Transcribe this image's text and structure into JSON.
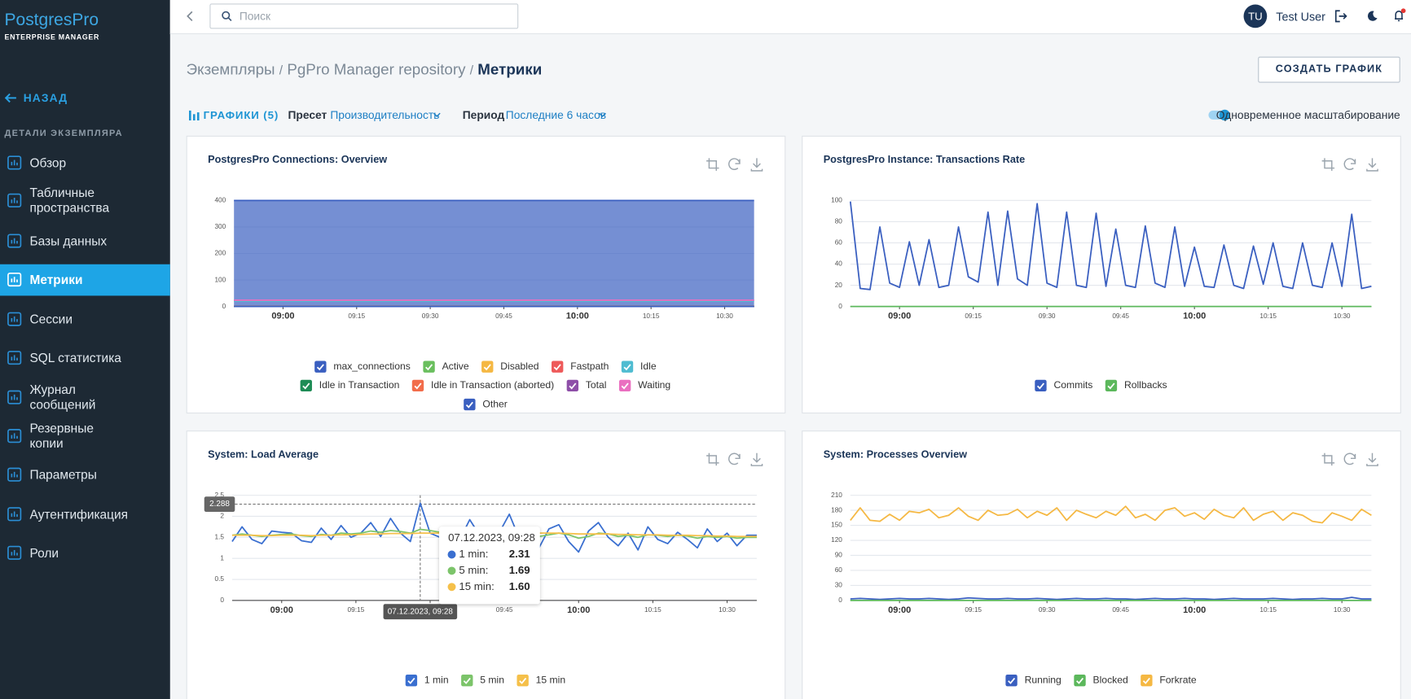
{
  "sidebar": {
    "logo": "PostgresPro",
    "logo_subtitle": "ENTERPRISE MANAGER",
    "back": "НАЗАД",
    "section": "ДЕТАЛИ ЭКЗЕМПЛЯРА",
    "items": [
      "Обзор",
      "Табличные пространства",
      "Базы данных",
      "Метрики",
      "Сессии",
      "SQL статистика",
      "Журнал сообщений",
      "Резервные копии",
      "Параметры",
      "Аутентификация",
      "Роли"
    ],
    "active": 3
  },
  "topbar": {
    "search_placeholder": "Поиск",
    "avatar": "TU",
    "user": "Test User"
  },
  "breadcrumbs": [
    "Экземпляры",
    "PgPro Manager repository",
    "Метрики"
  ],
  "breadcrumb_separator": "/",
  "create_button": "СОЗДАТЬ ГРАФИК",
  "toolbar": {
    "charts": "ГРАФИКИ (5)",
    "preset_label": "Пресет",
    "preset": "Производительность",
    "period_label": "Период",
    "period": "Последние 6 часов",
    "sync_zoom": "Одновременное масштабирование",
    "sync_zoom_on": true
  },
  "chart_data": [
    {
      "type": "line",
      "title": "PostgresPro Connections: Overview",
      "x": [
        530,
        636
      ],
      "xlim": [
        530,
        636
      ],
      "xticks": [
        {
          "value": 540,
          "label": "09:00"
        },
        {
          "value": 555,
          "label": "09:15"
        },
        {
          "value": 570,
          "label": "09:30"
        },
        {
          "value": 585,
          "label": "09:45"
        },
        {
          "value": 600,
          "label": "10:00"
        },
        {
          "value": 615,
          "label": "10:15"
        },
        {
          "value": 630,
          "label": "10:30"
        }
      ],
      "ylim": [
        0,
        400
      ],
      "yticks": [
        0,
        100,
        200,
        300,
        400
      ],
      "grid": true,
      "series": [
        {
          "name": "max_connections",
          "color": "#3a5fc0",
          "area": true,
          "values": [
            400,
            400
          ]
        },
        {
          "name": "Active",
          "color": "#6abf5e",
          "values": [
            1,
            1
          ]
        },
        {
          "name": "Disabled",
          "color": "#f5b843",
          "values": [
            0,
            0
          ]
        },
        {
          "name": "Fastpath",
          "color": "#ee5a5a",
          "values": [
            0,
            0
          ]
        },
        {
          "name": "Idle",
          "color": "#4fbcd1",
          "values": [
            20,
            20
          ]
        },
        {
          "name": "Idle in Transaction",
          "color": "#1e8c56",
          "values": [
            0,
            0
          ]
        },
        {
          "name": "Idle in Transaction (aborted)",
          "color": "#f26d4b",
          "values": [
            0,
            0
          ]
        },
        {
          "name": "Total",
          "color": "#8e4fa8",
          "values": [
            24,
            24
          ]
        },
        {
          "name": "Waiting",
          "color": "#ea6fc0",
          "values": [
            24,
            24
          ]
        },
        {
          "name": "Other",
          "color": "#3a5fc0",
          "values": [
            0,
            0
          ]
        }
      ]
    },
    {
      "type": "line",
      "title": "PostgresPro Instance: Transactions Rate",
      "x": [
        530,
        532,
        534,
        536,
        538,
        540,
        542,
        544,
        546,
        548,
        550,
        552,
        554,
        556,
        558,
        560,
        562,
        564,
        566,
        568,
        570,
        572,
        574,
        576,
        578,
        580,
        582,
        584,
        586,
        588,
        590,
        592,
        594,
        596,
        598,
        600,
        602,
        604,
        606,
        608,
        610,
        612,
        614,
        616,
        618,
        620,
        622,
        624,
        626,
        628,
        630,
        632,
        634,
        636
      ],
      "xlim": [
        530,
        636
      ],
      "xticks": [
        {
          "value": 540,
          "label": "09:00"
        },
        {
          "value": 555,
          "label": "09:15"
        },
        {
          "value": 570,
          "label": "09:30"
        },
        {
          "value": 585,
          "label": "09:45"
        },
        {
          "value": 600,
          "label": "10:00"
        },
        {
          "value": 615,
          "label": "10:15"
        },
        {
          "value": 630,
          "label": "10:30"
        }
      ],
      "ylim": [
        0,
        100
      ],
      "yticks": [
        0,
        20,
        40,
        60,
        80,
        100
      ],
      "grid": true,
      "series": [
        {
          "name": "Commits",
          "color": "#3a5fc0",
          "values": [
            99,
            17,
            16,
            75,
            22,
            18,
            61,
            20,
            63,
            18,
            20,
            75,
            28,
            23,
            89,
            20,
            90,
            26,
            20,
            97,
            22,
            18,
            89,
            20,
            18,
            88,
            19,
            73,
            20,
            18,
            76,
            22,
            18,
            75,
            19,
            56,
            19,
            18,
            58,
            20,
            17,
            57,
            21,
            60,
            19,
            17,
            60,
            20,
            18,
            60,
            19,
            87,
            17,
            19
          ]
        },
        {
          "name": "Rollbacks",
          "color": "#5cb85c",
          "values": [
            0,
            0,
            0,
            0,
            0,
            0,
            0,
            0,
            0,
            0,
            0,
            0,
            0,
            0,
            0,
            0,
            0,
            0,
            0,
            0,
            0,
            0,
            0,
            0,
            0,
            0,
            0,
            0,
            0,
            0,
            0,
            0,
            0,
            0,
            0,
            0,
            0,
            0,
            0,
            0,
            0,
            0,
            0,
            0,
            0,
            0,
            0,
            0,
            0,
            0,
            0,
            0,
            0,
            0
          ]
        }
      ]
    },
    {
      "type": "line",
      "title": "System: Load Average",
      "x": [
        530,
        532,
        534,
        536,
        538,
        540,
        542,
        544,
        546,
        548,
        550,
        552,
        554,
        556,
        558,
        560,
        562,
        564,
        566,
        568,
        570,
        572,
        574,
        576,
        578,
        580,
        582,
        584,
        586,
        588,
        590,
        592,
        594,
        596,
        598,
        600,
        602,
        604,
        606,
        608,
        610,
        612,
        614,
        616,
        618,
        620,
        622,
        624,
        626,
        628,
        630,
        632,
        634,
        636
      ],
      "xlim": [
        530,
        636
      ],
      "xticks": [
        {
          "value": 540,
          "label": "09:00"
        },
        {
          "value": 555,
          "label": "09:15"
        },
        {
          "value": 570,
          "label": "09:30"
        },
        {
          "value": 585,
          "label": "09:45"
        },
        {
          "value": 600,
          "label": "10:00"
        },
        {
          "value": 615,
          "label": "10:15"
        },
        {
          "value": 630,
          "label": "10:30"
        }
      ],
      "ylim": [
        0,
        2.5
      ],
      "yticks": [
        0,
        0.5,
        1,
        1.5,
        2,
        2.5
      ],
      "grid": true,
      "series": [
        {
          "name": "1 min",
          "color": "#3a6fd0",
          "values": [
            1.4,
            1.75,
            1.45,
            1.35,
            1.65,
            1.62,
            1.6,
            1.42,
            1.38,
            1.72,
            1.45,
            1.78,
            1.5,
            1.6,
            1.85,
            1.52,
            1.95,
            1.6,
            1.4,
            2.31,
            1.6,
            1.5,
            1.7,
            1.45,
            1.92,
            1.55,
            1.35,
            1.62,
            2.05,
            1.48,
            1.55,
            1.25,
            1.7,
            1.8,
            1.4,
            1.15,
            1.65,
            1.85,
            1.5,
            1.3,
            1.6,
            1.2,
            1.75,
            1.45,
            1.35,
            1.62,
            1.45,
            1.25,
            1.7,
            1.4,
            1.6,
            1.3,
            1.55,
            1.55
          ]
        },
        {
          "name": "5 min",
          "color": "#7cc46a",
          "values": [
            1.55,
            1.58,
            1.55,
            1.52,
            1.55,
            1.57,
            1.58,
            1.54,
            1.52,
            1.57,
            1.55,
            1.6,
            1.58,
            1.6,
            1.65,
            1.62,
            1.66,
            1.64,
            1.6,
            1.69,
            1.66,
            1.62,
            1.64,
            1.6,
            1.66,
            1.63,
            1.58,
            1.6,
            1.66,
            1.6,
            1.58,
            1.52,
            1.56,
            1.6,
            1.56,
            1.48,
            1.52,
            1.6,
            1.58,
            1.52,
            1.55,
            1.5,
            1.56,
            1.55,
            1.52,
            1.55,
            1.53,
            1.48,
            1.52,
            1.5,
            1.52,
            1.48,
            1.5,
            1.5
          ]
        },
        {
          "name": "15 min",
          "color": "#f5c04a",
          "values": [
            1.55,
            1.55,
            1.55,
            1.54,
            1.54,
            1.55,
            1.55,
            1.55,
            1.54,
            1.55,
            1.55,
            1.56,
            1.56,
            1.57,
            1.58,
            1.58,
            1.59,
            1.59,
            1.59,
            1.6,
            1.6,
            1.6,
            1.61,
            1.61,
            1.61,
            1.61,
            1.61,
            1.61,
            1.62,
            1.62,
            1.61,
            1.6,
            1.6,
            1.6,
            1.59,
            1.58,
            1.58,
            1.58,
            1.58,
            1.57,
            1.57,
            1.56,
            1.56,
            1.56,
            1.55,
            1.55,
            1.55,
            1.54,
            1.54,
            1.53,
            1.53,
            1.52,
            1.52,
            1.52
          ]
        }
      ],
      "crosshair": {
        "x": 568,
        "y": 2.288,
        "x_label": "07.12.2023, 09:28"
      },
      "tooltip": {
        "title": "07.12.2023, 09:28",
        "items": [
          {
            "name": "1 min:",
            "value": "2.31"
          },
          {
            "name": "5 min:",
            "value": "1.69"
          },
          {
            "name": "15 min:",
            "value": "1.60"
          }
        ]
      }
    },
    {
      "type": "line",
      "title": "System: Processes Overview",
      "x": [
        530,
        532,
        534,
        536,
        538,
        540,
        542,
        544,
        546,
        548,
        550,
        552,
        554,
        556,
        558,
        560,
        562,
        564,
        566,
        568,
        570,
        572,
        574,
        576,
        578,
        580,
        582,
        584,
        586,
        588,
        590,
        592,
        594,
        596,
        598,
        600,
        602,
        604,
        606,
        608,
        610,
        612,
        614,
        616,
        618,
        620,
        622,
        624,
        626,
        628,
        630,
        632,
        634,
        636
      ],
      "xlim": [
        530,
        636
      ],
      "xticks": [
        {
          "value": 540,
          "label": "09:00"
        },
        {
          "value": 555,
          "label": "09:15"
        },
        {
          "value": 570,
          "label": "09:30"
        },
        {
          "value": 585,
          "label": "09:45"
        },
        {
          "value": 600,
          "label": "10:00"
        },
        {
          "value": 615,
          "label": "10:15"
        },
        {
          "value": 630,
          "label": "10:30"
        }
      ],
      "ylim": [
        0,
        210
      ],
      "yticks": [
        0,
        30,
        60,
        90,
        120,
        150,
        180,
        210
      ],
      "grid": true,
      "series": [
        {
          "name": "Running",
          "color": "#3a5fc0",
          "values": [
            3,
            4,
            3,
            2,
            3,
            4,
            3,
            3,
            4,
            3,
            2,
            3,
            5,
            4,
            3,
            3,
            4,
            3,
            3,
            4,
            3,
            2,
            3,
            4,
            3,
            3,
            4,
            3,
            3,
            2,
            3,
            4,
            3,
            3,
            4,
            3,
            3,
            2,
            3,
            4,
            3,
            3,
            3,
            4,
            3,
            2,
            3,
            3,
            4,
            3,
            3,
            6,
            3,
            3
          ]
        },
        {
          "name": "Blocked",
          "color": "#5cb85c",
          "values": [
            0,
            0,
            0,
            0,
            0,
            0,
            0,
            0,
            0,
            0,
            0,
            0,
            0,
            0,
            0,
            0,
            0,
            0,
            0,
            0,
            0,
            0,
            0,
            0,
            0,
            0,
            0,
            0,
            0,
            0,
            0,
            0,
            0,
            0,
            0,
            0,
            0,
            0,
            0,
            0,
            0,
            0,
            0,
            0,
            0,
            0,
            0,
            0,
            0,
            0,
            0,
            0,
            0,
            0
          ]
        },
        {
          "name": "Forkrate",
          "color": "#f5b843",
          "values": [
            160,
            185,
            160,
            158,
            172,
            160,
            178,
            175,
            182,
            165,
            170,
            185,
            168,
            160,
            180,
            170,
            172,
            182,
            165,
            178,
            170,
            185,
            160,
            180,
            172,
            165,
            178,
            170,
            188,
            165,
            172,
            160,
            180,
            185,
            168,
            175,
            162,
            182,
            170,
            165,
            185,
            160,
            172,
            178,
            160,
            175,
            170,
            158,
            155,
            175,
            168,
            160,
            182,
            170
          ]
        }
      ]
    }
  ]
}
